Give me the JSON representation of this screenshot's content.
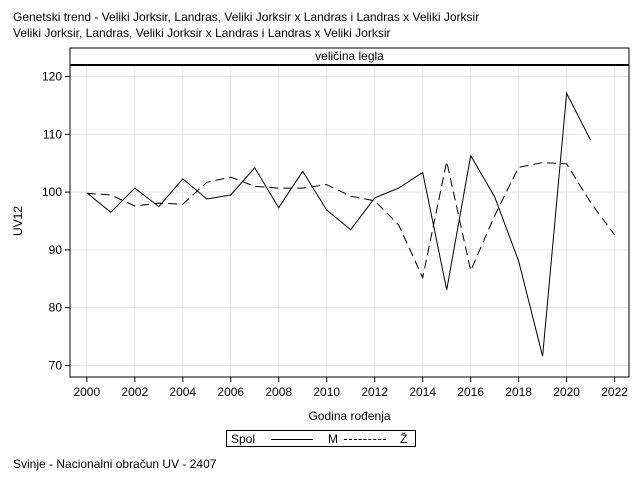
{
  "title_lines": [
    "Genetski trend - Veliki Jorksir, Landras, Veliki Jorksir x Landras i Landras x Veliki Jorksir",
    "Veliki Jorksir, Landras, Veliki Jorksir x Landras i Landras x Veliki Jorksir"
  ],
  "footer": "Svinje - Nacionalni obračun UV - 2407",
  "legend": {
    "title": "Spol",
    "items": [
      "M",
      "Ž"
    ]
  },
  "chart_data": {
    "type": "line",
    "panel_label": "veličina legla",
    "xlabel": "Godina rođenja",
    "ylabel": "UV12",
    "xlim": [
      1999.3,
      2022.6
    ],
    "ylim": [
      68,
      122
    ],
    "xticks": [
      2000,
      2002,
      2004,
      2006,
      2008,
      2010,
      2012,
      2014,
      2016,
      2018,
      2020,
      2022
    ],
    "yticks": [
      70,
      80,
      90,
      100,
      110,
      120
    ],
    "grid": true,
    "legend_position": "bottom",
    "series": [
      {
        "name": "M",
        "style": "solid",
        "x": [
          2000,
          2001,
          2002,
          2003,
          2004,
          2005,
          2006,
          2007,
          2008,
          2009,
          2010,
          2011,
          2012,
          2013,
          2014,
          2015,
          2016,
          2017,
          2018,
          2019,
          2020,
          2021
        ],
        "y": [
          99.9,
          96.5,
          100.7,
          97.5,
          102.3,
          98.8,
          99.5,
          104.2,
          97.3,
          103.6,
          96.9,
          93.5,
          99.0,
          100.7,
          103.4,
          83.1,
          106.3,
          99.2,
          88.1,
          71.6,
          117.1,
          109.0
        ]
      },
      {
        "name": "Ž",
        "style": "dashed",
        "x": [
          2000,
          2001,
          2002,
          2003,
          2004,
          2005,
          2006,
          2007,
          2008,
          2009,
          2010,
          2011,
          2012,
          2013,
          2014,
          2015,
          2016,
          2017,
          2018,
          2019,
          2020,
          2021,
          2022
        ],
        "y": [
          99.8,
          99.5,
          97.6,
          98.1,
          97.9,
          101.7,
          102.6,
          101.0,
          100.7,
          100.7,
          101.3,
          99.3,
          98.5,
          94.3,
          85.2,
          105.3,
          86.4,
          95.9,
          104.3,
          105.1,
          104.9,
          98.2,
          92.6
        ]
      }
    ]
  }
}
